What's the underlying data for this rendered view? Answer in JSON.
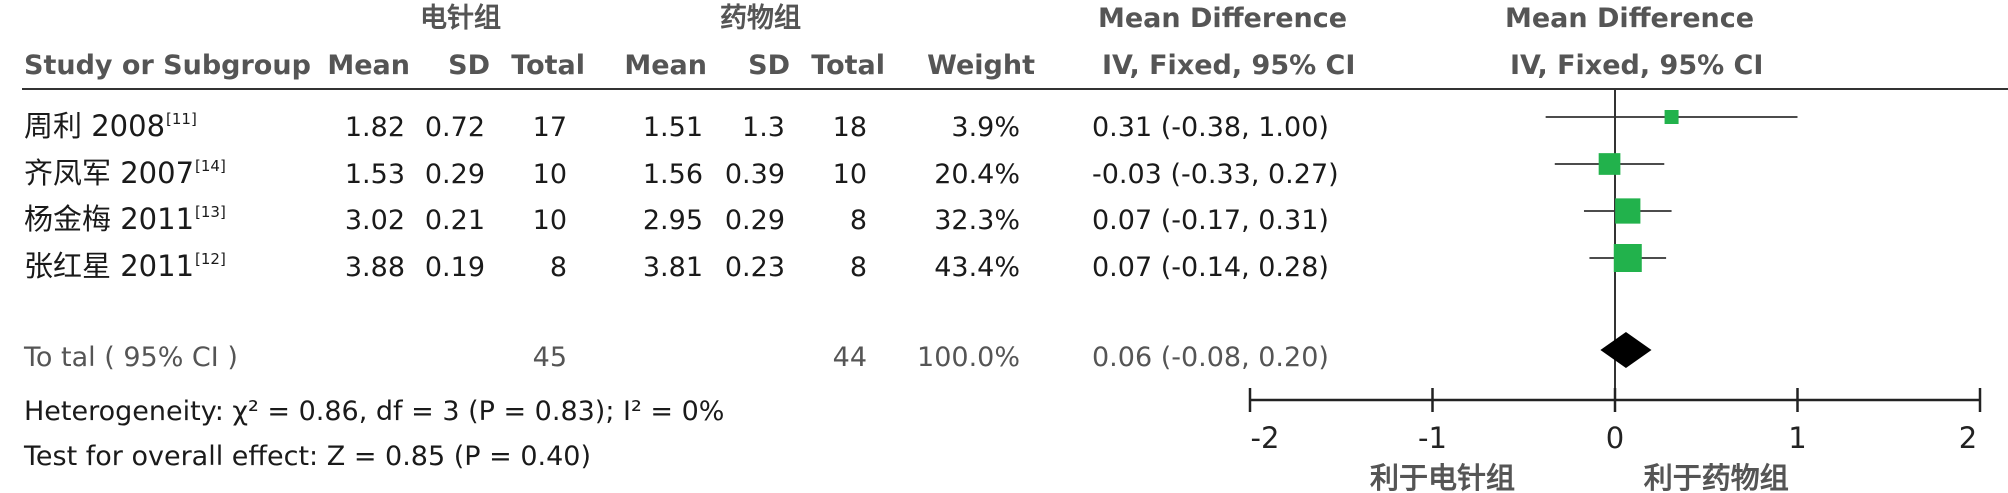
{
  "header": {
    "group1": "电针组",
    "group2": "药物组",
    "md_title_left": "Mean Difference",
    "md_title_right": "Mean Difference",
    "study_col": "Study or Subgroup",
    "mean1": "Mean",
    "sd1": "SD",
    "total1": "Total",
    "mean2": "Mean",
    "sd2": "SD",
    "total2": "Total",
    "weight": "Weight",
    "ci_left": "IV, Fixed, 95% CI",
    "ci_right": "IV, Fixed, 95% CI"
  },
  "rows": [
    {
      "study": "周利 2008",
      "ref": "[11]",
      "mean1": "1.82",
      "sd1": "0.72",
      "total1": "17",
      "mean2": "1.51",
      "sd2": "1.3",
      "total2": "18",
      "weight": "3.9%",
      "ci": "0.31 (-0.38, 1.00)"
    },
    {
      "study": "齐凤军 2007",
      "ref": "[14]",
      "mean1": "1.53",
      "sd1": "0.29",
      "total1": "10",
      "mean2": "1.56",
      "sd2": "0.39",
      "total2": "10",
      "weight": "20.4%",
      "ci": "-0.03 (-0.33, 0.27)"
    },
    {
      "study": "杨金梅 2011",
      "ref": "[13]",
      "mean1": "3.02",
      "sd1": "0.21",
      "total1": "10",
      "mean2": "2.95",
      "sd2": "0.29",
      "total2": "8",
      "weight": "32.3%",
      "ci": "0.07 (-0.17, 0.31)"
    },
    {
      "study": "张红星 2011",
      "ref": "[12]",
      "mean1": "3.88",
      "sd1": "0.19",
      "total1": "8",
      "mean2": "3.81",
      "sd2": "0.23",
      "total2": "8",
      "weight": "43.4%",
      "ci": "0.07 (-0.14, 0.28)"
    }
  ],
  "total": {
    "label": "To tal ( 95% CI )",
    "total1": "45",
    "total2": "44",
    "weight": "100.0%",
    "ci": "0.06 (-0.08, 0.20)"
  },
  "footer": {
    "heterogeneity": "Heterogeneity: χ² = 0.86, df = 3 (P = 0.83); I² = 0%",
    "overall": "Test for overall effect: Z = 0.85 (P = 0.40)"
  },
  "chart_data": {
    "type": "forest",
    "xlim": [
      -2,
      2
    ],
    "ticks": [
      -2,
      -1,
      0,
      1,
      2
    ],
    "tick_labels": [
      "-2",
      "-1",
      "0",
      "1",
      "2"
    ],
    "axis_label_left": "利于电针组",
    "axis_label_right": "利于药物组",
    "marker_color": "#22b24c",
    "diamond_color": "#000000",
    "studies": [
      {
        "name": "周利 2008",
        "md": 0.31,
        "lower": -0.38,
        "upper": 1.0,
        "weight": 3.9
      },
      {
        "name": "齐凤军 2007",
        "md": -0.03,
        "lower": -0.33,
        "upper": 0.27,
        "weight": 20.4
      },
      {
        "name": "杨金梅 2011",
        "md": 0.07,
        "lower": -0.17,
        "upper": 0.31,
        "weight": 32.3
      },
      {
        "name": "张红星 2011",
        "md": 0.07,
        "lower": -0.14,
        "upper": 0.28,
        "weight": 43.4
      }
    ],
    "pooled": {
      "md": 0.06,
      "lower": -0.08,
      "upper": 0.2
    }
  }
}
